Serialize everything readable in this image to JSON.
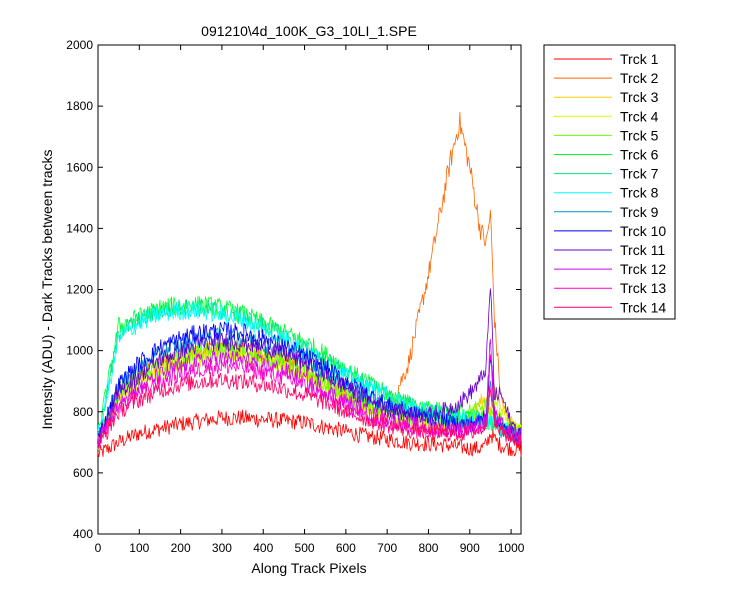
{
  "chart_data": {
    "type": "line",
    "title": "091210\\4d_100K_G3_10LI_1.SPE",
    "xlabel": "Along Track Pixels",
    "ylabel": "Intensity (ADU) - Dark Tracks between tracks",
    "xlim": [
      0,
      1024
    ],
    "ylim": [
      400,
      2000
    ],
    "xticks": [
      0,
      100,
      200,
      300,
      400,
      500,
      600,
      700,
      800,
      900,
      1000
    ],
    "yticks": [
      400,
      600,
      800,
      1000,
      1200,
      1400,
      1600,
      1800,
      2000
    ],
    "grid": false,
    "legend_position": "outside-right",
    "x": [
      0,
      25,
      50,
      100,
      150,
      200,
      250,
      300,
      350,
      400,
      450,
      500,
      550,
      600,
      650,
      700,
      750,
      800,
      850,
      875,
      900,
      925,
      940,
      950,
      960,
      975,
      1000,
      1024
    ],
    "series": [
      {
        "name": "Trck 1",
        "color": "#ff0000",
        "values": [
          660,
          680,
          700,
          730,
          745,
          760,
          770,
          780,
          780,
          775,
          770,
          765,
          750,
          735,
          720,
          710,
          700,
          695,
          690,
          685,
          680,
          680,
          690,
          730,
          710,
          690,
          680,
          675
        ]
      },
      {
        "name": "Trck 2",
        "color": "#ff6600",
        "values": [
          700,
          780,
          880,
          920,
          950,
          980,
          1000,
          1010,
          1005,
          990,
          970,
          940,
          900,
          860,
          820,
          800,
          950,
          1250,
          1600,
          1750,
          1600,
          1400,
          1350,
          1450,
          1100,
          850,
          740,
          730
        ]
      },
      {
        "name": "Trck 3",
        "color": "#ffcc00",
        "values": [
          700,
          780,
          860,
          900,
          940,
          975,
          990,
          1000,
          995,
          980,
          960,
          930,
          890,
          850,
          820,
          790,
          770,
          760,
          755,
          760,
          790,
          830,
          840,
          800,
          860,
          830,
          760,
          740
        ]
      },
      {
        "name": "Trck 4",
        "color": "#ccff00",
        "values": [
          700,
          780,
          850,
          890,
          930,
          960,
          980,
          990,
          985,
          970,
          950,
          920,
          880,
          840,
          810,
          790,
          770,
          760,
          750,
          755,
          770,
          800,
          810,
          790,
          830,
          800,
          755,
          735
        ]
      },
      {
        "name": "Trck 5",
        "color": "#66ff00",
        "values": [
          700,
          790,
          870,
          910,
          950,
          980,
          995,
          1005,
          1000,
          985,
          965,
          935,
          895,
          855,
          820,
          800,
          785,
          780,
          780,
          790,
          800,
          810,
          820,
          790,
          800,
          770,
          740,
          730
        ]
      },
      {
        "name": "Trck 6",
        "color": "#00ff33",
        "values": [
          730,
          900,
          1080,
          1110,
          1140,
          1150,
          1150,
          1140,
          1120,
          1090,
          1060,
          1030,
          990,
          940,
          900,
          860,
          830,
          810,
          800,
          800,
          790,
          780,
          770,
          760,
          770,
          750,
          730,
          720
        ]
      },
      {
        "name": "Trck 7",
        "color": "#00e680",
        "values": [
          720,
          880,
          1060,
          1100,
          1130,
          1140,
          1140,
          1130,
          1110,
          1080,
          1050,
          1010,
          970,
          930,
          890,
          855,
          825,
          800,
          785,
          780,
          775,
          770,
          770,
          760,
          770,
          750,
          730,
          720
        ]
      },
      {
        "name": "Trck 8",
        "color": "#00ffff",
        "values": [
          720,
          870,
          1040,
          1090,
          1120,
          1130,
          1130,
          1120,
          1100,
          1070,
          1040,
          1000,
          960,
          920,
          880,
          850,
          820,
          800,
          790,
          785,
          780,
          775,
          770,
          760,
          770,
          750,
          730,
          720
        ]
      },
      {
        "name": "Trck 9",
        "color": "#0099cc",
        "values": [
          710,
          800,
          880,
          940,
          990,
          1020,
          1040,
          1045,
          1040,
          1025,
          1000,
          970,
          930,
          890,
          850,
          820,
          800,
          785,
          770,
          765,
          760,
          760,
          770,
          900,
          780,
          740,
          725,
          715
        ]
      },
      {
        "name": "Trck 10",
        "color": "#0000ff",
        "values": [
          710,
          800,
          890,
          960,
          1010,
          1040,
          1060,
          1065,
          1060,
          1040,
          1015,
          985,
          945,
          900,
          860,
          825,
          800,
          780,
          765,
          760,
          760,
          770,
          800,
          1000,
          800,
          750,
          730,
          720
        ]
      },
      {
        "name": "Trck 11",
        "color": "#6600cc",
        "values": [
          705,
          780,
          860,
          920,
          970,
          1000,
          1020,
          1030,
          1025,
          1010,
          990,
          960,
          920,
          880,
          840,
          810,
          790,
          790,
          810,
          830,
          860,
          900,
          950,
          1220,
          850,
          860,
          760,
          730
        ]
      },
      {
        "name": "Trck 12",
        "color": "#cc00ff",
        "values": [
          700,
          770,
          840,
          880,
          920,
          950,
          965,
          975,
          970,
          955,
          935,
          905,
          870,
          835,
          800,
          775,
          760,
          750,
          745,
          745,
          750,
          760,
          780,
          1050,
          790,
          760,
          730,
          720
        ]
      },
      {
        "name": "Trck 13",
        "color": "#ff00cc",
        "values": [
          695,
          760,
          820,
          860,
          895,
          925,
          940,
          950,
          945,
          930,
          910,
          885,
          850,
          815,
          785,
          765,
          750,
          742,
          738,
          738,
          742,
          750,
          770,
          980,
          780,
          750,
          725,
          715
        ]
      },
      {
        "name": "Trck 14",
        "color": "#ff0066",
        "values": [
          690,
          740,
          800,
          840,
          870,
          890,
          900,
          905,
          900,
          890,
          875,
          855,
          830,
          800,
          775,
          755,
          740,
          732,
          728,
          728,
          732,
          740,
          760,
          900,
          760,
          735,
          715,
          705
        ]
      }
    ]
  }
}
